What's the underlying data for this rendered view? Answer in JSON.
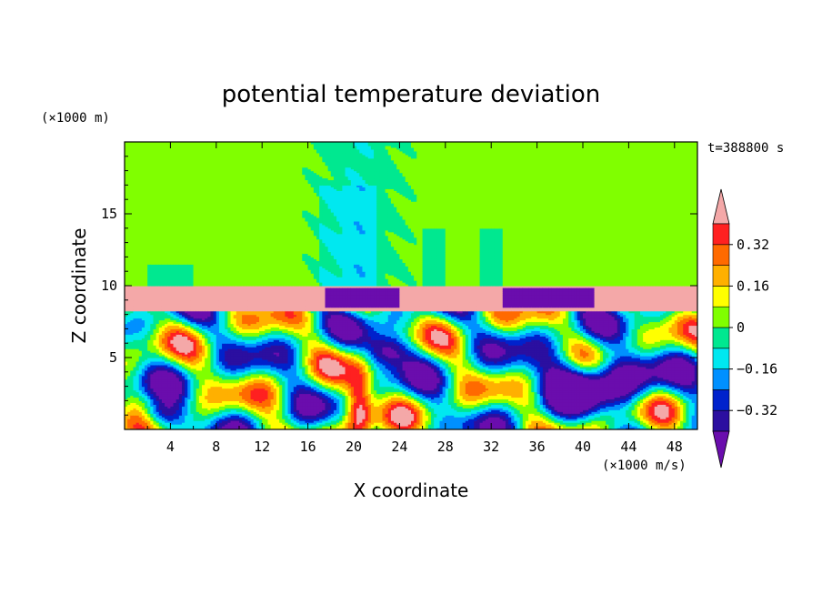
{
  "chart_data": {
    "type": "heatmap",
    "title": "potential temperature deviation",
    "xlabel": "X coordinate",
    "ylabel": "Z coordinate",
    "x_unit": "(×1000 m/s)",
    "y_unit": "(×1000 m)",
    "time_label": "t=388800 s",
    "xlim": [
      0,
      50
    ],
    "ylim": [
      0,
      20
    ],
    "x_ticks": [
      4,
      8,
      12,
      16,
      20,
      24,
      28,
      32,
      36,
      40,
      44,
      48
    ],
    "y_ticks": [
      5,
      10,
      15
    ],
    "colorbar": {
      "labels": [
        "0.32",
        "0.16",
        "0",
        "−0.16",
        "−0.32"
      ],
      "label_values": [
        0.32,
        0.16,
        0,
        -0.16,
        -0.32
      ],
      "levels": [
        -0.4,
        -0.32,
        -0.24,
        -0.16,
        -0.08,
        0,
        0.08,
        0.16,
        0.24,
        0.32,
        0.4
      ],
      "colors": [
        "#6a0dad",
        "#2b0fa0",
        "#0022cc",
        "#0090ff",
        "#00e8f0",
        "#00e890",
        "#80ff00",
        "#ffff00",
        "#ffb000",
        "#ff6a00",
        "#ff2020",
        "#f4a8a8"
      ],
      "extend": "both"
    },
    "regions": {
      "upper_background_value": 0.04,
      "inversion_layer": {
        "z_range": [
          8.3,
          10.0
        ],
        "value": 0.45
      },
      "upper_plume_x_range": [
        15,
        26
      ],
      "arch_x_range": [
        26,
        33
      ]
    },
    "grid": false
  }
}
